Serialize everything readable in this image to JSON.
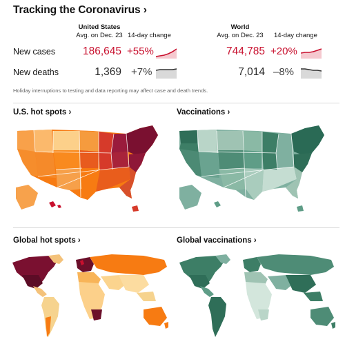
{
  "header": {
    "title": "Tracking the Coronavirus ›"
  },
  "us": {
    "name": "United States",
    "avg": "Avg. on Dec. 23",
    "change_label": "14-day change"
  },
  "world": {
    "name": "World",
    "avg": "Avg. on Dec. 23",
    "change_label": "14-day change"
  },
  "rows": [
    {
      "label": "New cases",
      "us_value": "186,645",
      "us_change": "+55%",
      "world_value": "744,785",
      "world_change": "+20%"
    },
    {
      "label": "New deaths",
      "us_value": "1,369",
      "us_change": "+7%",
      "world_value": "7,014",
      "world_change": "–8%"
    }
  ],
  "note": "Holiday interruptions to testing and data reporting may affect case and death trends.",
  "sections": {
    "us_hotspots": "U.S. hot spots ›",
    "vaccinations": "Vaccinations ›",
    "global_hotspots": "Global hot spots ›",
    "global_vaccinations": "Global vaccinations ›"
  },
  "colors": {
    "red_accent": "#c8102e",
    "red_fill": "#f5c9cf",
    "gray_fill": "#d9d9d9",
    "hot_dark": "#6b0f2a",
    "hot_mid": "#d63a2a",
    "hot_orange": "#f77b12",
    "hot_light": "#fcd08a",
    "vax_dark": "#2f6e58",
    "vax_mid": "#5f9d87",
    "vax_light": "#b9d5c8"
  }
}
